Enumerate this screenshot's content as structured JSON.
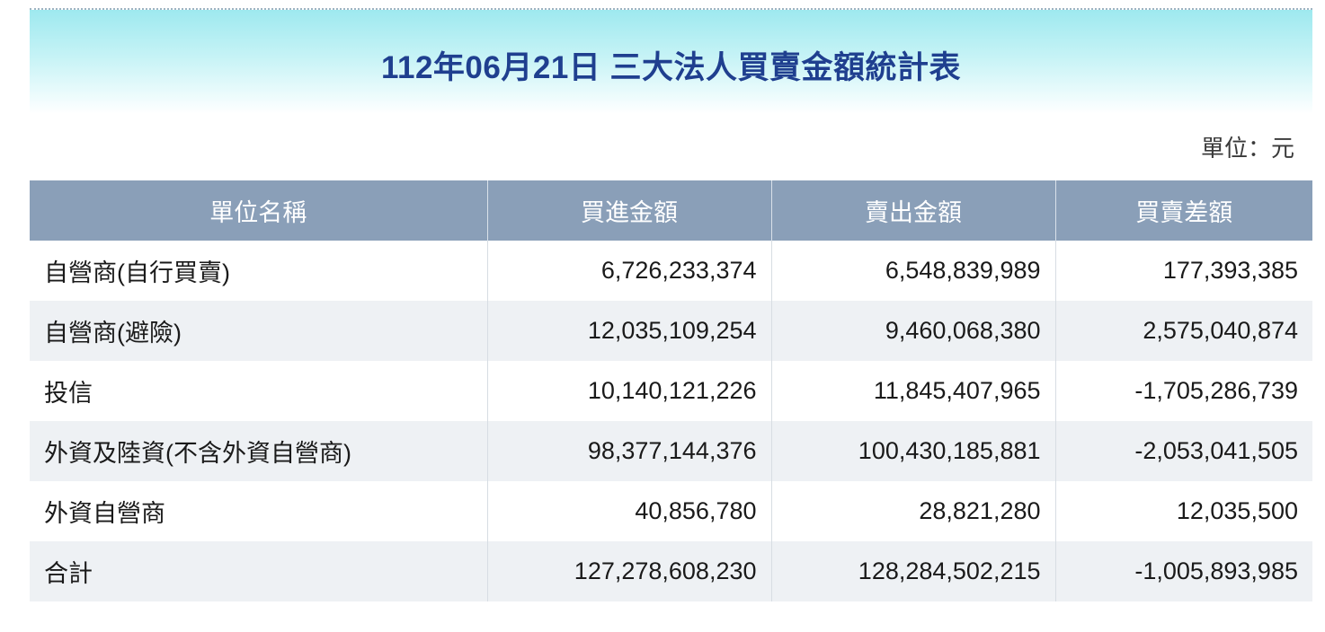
{
  "header": {
    "title": "112年06月21日 三大法人買賣金額統計表",
    "unit": "單位：元"
  },
  "table": {
    "columns": [
      "單位名稱",
      "買進金額",
      "賣出金額",
      "買賣差額"
    ],
    "rows": [
      {
        "name": "自營商(自行買賣)",
        "buy": "6,726,233,374",
        "sell": "6,548,839,989",
        "diff": "177,393,385"
      },
      {
        "name": "自營商(避險)",
        "buy": "12,035,109,254",
        "sell": "9,460,068,380",
        "diff": "2,575,040,874"
      },
      {
        "name": "投信",
        "buy": "10,140,121,226",
        "sell": "11,845,407,965",
        "diff": "-1,705,286,739"
      },
      {
        "name": "外資及陸資(不含外資自營商)",
        "buy": "98,377,144,376",
        "sell": "100,430,185,881",
        "diff": "-2,053,041,505"
      },
      {
        "name": "外資自營商",
        "buy": "40,856,780",
        "sell": "28,821,280",
        "diff": "12,035,500"
      },
      {
        "name": "合計",
        "buy": "127,278,608,230",
        "sell": "128,284,502,215",
        "diff": "-1,005,893,985"
      }
    ]
  },
  "colors": {
    "title": "#1f3f8f",
    "header_bg": "#8a9fb8",
    "stripe_bg": "#eef1f4",
    "banner": "#9ee9ef"
  }
}
